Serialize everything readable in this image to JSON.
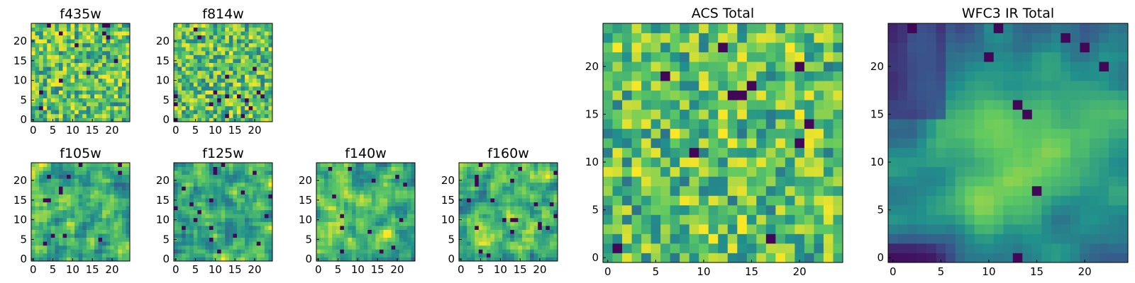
{
  "figure": {
    "colormap": "viridis",
    "colors": [
      "#440154",
      "#3b528b",
      "#21918c",
      "#5ec962",
      "#fde725"
    ]
  },
  "chart_data": [
    {
      "type": "heatmap",
      "title": "f435w",
      "grid_size": 25,
      "xlim": [
        0,
        24
      ],
      "ylim": [
        0,
        24
      ],
      "xticks": [
        0,
        5,
        10,
        15,
        20
      ],
      "yticks": [
        0,
        5,
        10,
        15,
        20
      ],
      "pattern": "noisy",
      "smoothness": 1,
      "seed": 11
    },
    {
      "type": "heatmap",
      "title": "f814w",
      "grid_size": 25,
      "xlim": [
        0,
        24
      ],
      "ylim": [
        0,
        24
      ],
      "xticks": [
        0,
        5,
        10,
        15,
        20
      ],
      "yticks": [
        0,
        5,
        10,
        15,
        20
      ],
      "pattern": "noisy",
      "smoothness": 1,
      "seed": 23
    },
    {
      "type": "heatmap",
      "title": "f105w",
      "grid_size": 25,
      "xlim": [
        0,
        24
      ],
      "ylim": [
        0,
        24
      ],
      "xticks": [
        0,
        5,
        10,
        15,
        20
      ],
      "yticks": [
        0,
        5,
        10,
        15,
        20
      ],
      "pattern": "blobby",
      "smoothness": 2,
      "seed": 37
    },
    {
      "type": "heatmap",
      "title": "f125w",
      "grid_size": 25,
      "xlim": [
        0,
        24
      ],
      "ylim": [
        0,
        24
      ],
      "xticks": [
        0,
        5,
        10,
        15,
        20
      ],
      "yticks": [
        0,
        5,
        10,
        15,
        20
      ],
      "pattern": "blobby",
      "smoothness": 2,
      "seed": 41
    },
    {
      "type": "heatmap",
      "title": "f140w",
      "grid_size": 25,
      "xlim": [
        0,
        24
      ],
      "ylim": [
        0,
        24
      ],
      "xticks": [
        0,
        5,
        10,
        15,
        20
      ],
      "yticks": [
        0,
        5,
        10,
        15,
        20
      ],
      "pattern": "blobby",
      "smoothness": 2,
      "seed": 53
    },
    {
      "type": "heatmap",
      "title": "f160w",
      "grid_size": 25,
      "xlim": [
        0,
        24
      ],
      "ylim": [
        0,
        24
      ],
      "xticks": [
        0,
        5,
        10,
        15,
        20
      ],
      "yticks": [
        0,
        5,
        10,
        15,
        20
      ],
      "pattern": "blobby",
      "smoothness": 2,
      "seed": 67
    },
    {
      "type": "heatmap",
      "title": "ACS Total",
      "grid_size": 25,
      "xlim": [
        0,
        24
      ],
      "ylim": [
        0,
        24
      ],
      "xticks": [
        0,
        5,
        10,
        15,
        20
      ],
      "yticks": [
        0,
        5,
        10,
        15,
        20
      ],
      "pattern": "noisy",
      "smoothness": 1,
      "seed": 79
    },
    {
      "type": "heatmap",
      "title": "WFC3 IR Total",
      "grid_size": 25,
      "xlim": [
        0,
        24
      ],
      "ylim": [
        0,
        24
      ],
      "xticks": [
        0,
        5,
        10,
        15,
        20
      ],
      "yticks": [
        0,
        5,
        10,
        15,
        20
      ],
      "pattern": "gradient",
      "smoothness": 3,
      "seed": 97
    }
  ]
}
